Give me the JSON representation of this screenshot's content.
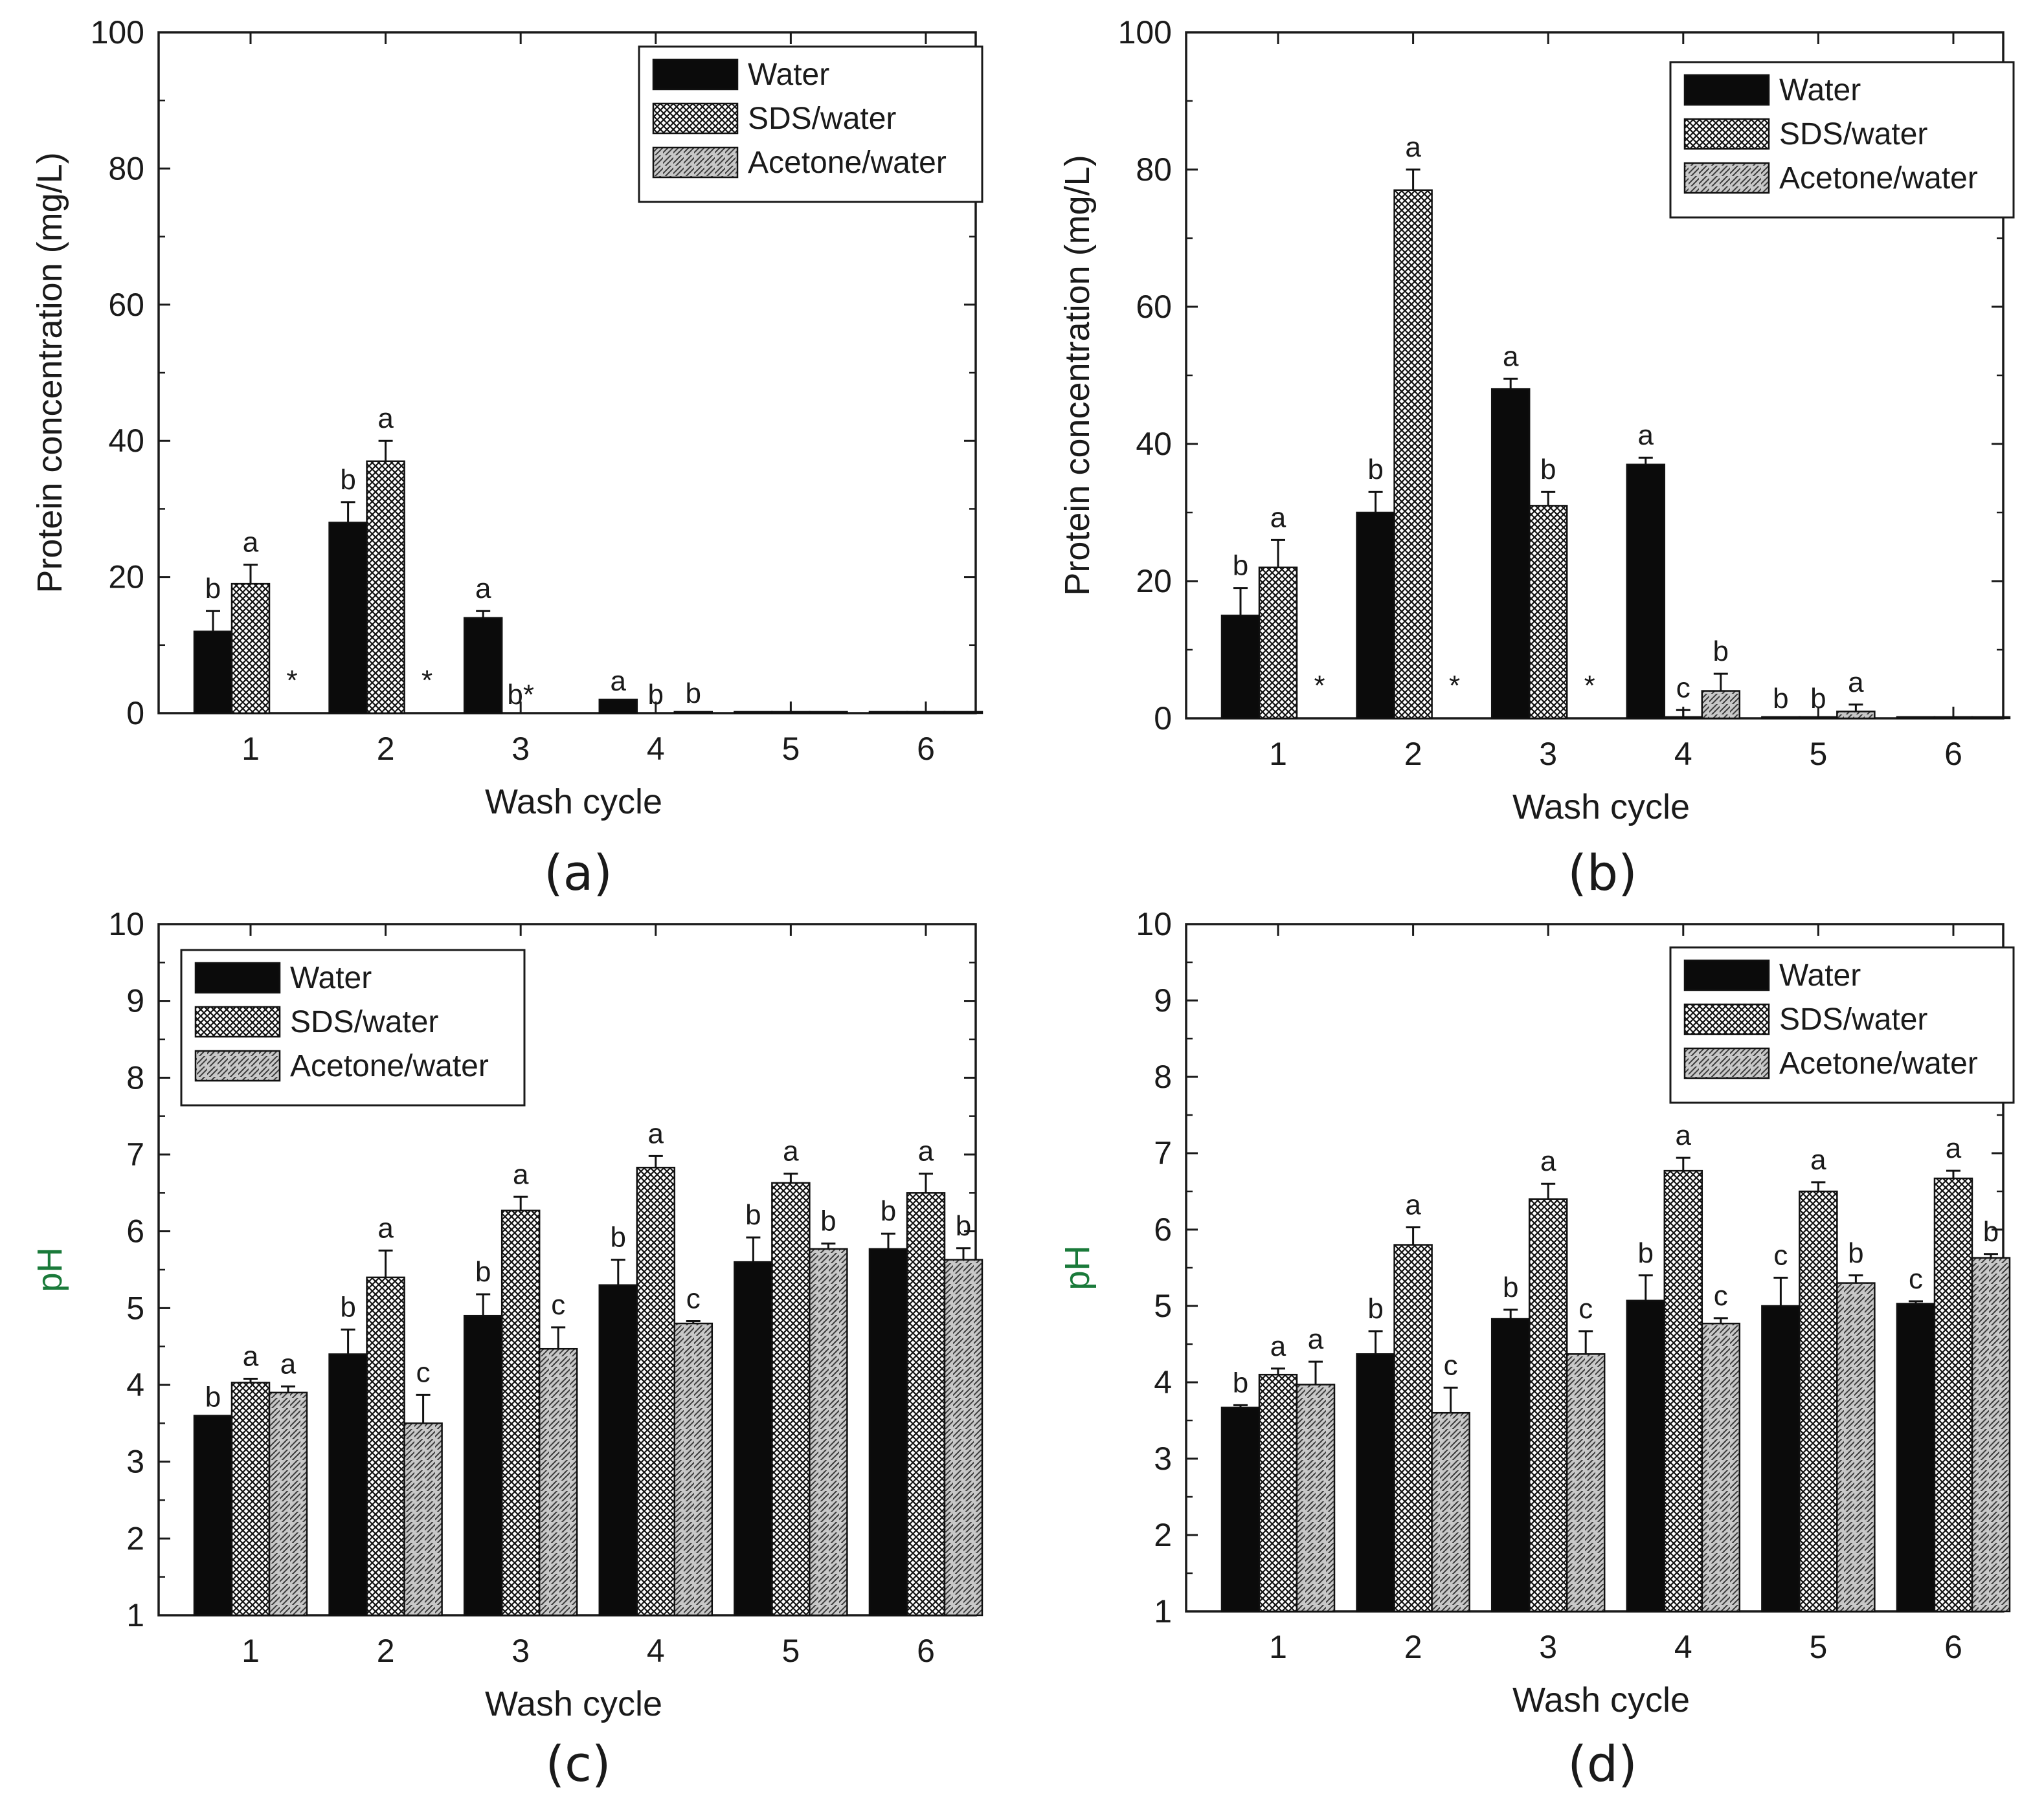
{
  "figure": {
    "captions": [
      "(a)",
      "(b)",
      "(c)",
      "(d)"
    ]
  },
  "colors": {
    "water": "#0b0b0b",
    "sds_bg": "#ffffff",
    "sds_dot": "#111111",
    "acetone_bg": "#c8c8c8",
    "acetone_hatch": "#3a3a3a",
    "axis": "#1a1a1a",
    "letter": "#1a1a1a",
    "letter_brown": "#8a5a1a",
    "ph_label": "#1a7a3a"
  },
  "chart_data": [
    {
      "id": "a",
      "type": "bar",
      "xlabel": "Wash cycle",
      "ylabel": "Protein concentration (mg/L)",
      "ylim": [
        0,
        100
      ],
      "yticks": [
        "0",
        "20",
        "40",
        "60",
        "80",
        "100"
      ],
      "categories": [
        "1",
        "2",
        "3",
        "4",
        "5",
        "6"
      ],
      "legend": {
        "position": "top-right",
        "entries": [
          "Water",
          "SDS/water",
          "Acetone/water"
        ]
      },
      "series": [
        {
          "name": "Water",
          "values": [
            12,
            28,
            14,
            2,
            0.2,
            0.2
          ],
          "errors": [
            3,
            3,
            1,
            0,
            0,
            0
          ],
          "labels": [
            "b",
            "b",
            "a",
            "a",
            "",
            ""
          ]
        },
        {
          "name": "SDS/water",
          "values": [
            19,
            37,
            0,
            0,
            0.2,
            0.2
          ],
          "errors": [
            2.8,
            3,
            0,
            0,
            0,
            0
          ],
          "labels": [
            "a",
            "a",
            "b*",
            "b",
            "",
            ""
          ]
        },
        {
          "name": "Acetone/water",
          "values": [
            0,
            0,
            0,
            0.2,
            0.2,
            0.2
          ],
          "errors": [
            0,
            0,
            0,
            0,
            0,
            0
          ],
          "labels": [
            "*",
            "*",
            "",
            "b",
            "",
            ""
          ]
        }
      ]
    },
    {
      "id": "b",
      "type": "bar",
      "xlabel": "Wash cycle",
      "ylabel": "Protein concentration (mg/L)",
      "ylim": [
        0,
        100
      ],
      "yticks": [
        "0",
        "20",
        "40",
        "60",
        "80",
        "100"
      ],
      "categories": [
        "1",
        "2",
        "3",
        "4",
        "5",
        "6"
      ],
      "legend": {
        "position": "top-right",
        "entries": [
          "Water",
          "SDS/water",
          "Acetone/water"
        ]
      },
      "series": [
        {
          "name": "Water",
          "values": [
            15,
            30,
            48,
            37,
            0.2,
            0.2
          ],
          "errors": [
            4,
            3,
            1.5,
            1,
            0,
            0
          ],
          "labels": [
            "b",
            "b",
            "a",
            "a",
            "b",
            ""
          ]
        },
        {
          "name": "SDS/water",
          "values": [
            22,
            77,
            31,
            0.2,
            0.2,
            0.2
          ],
          "errors": [
            4,
            3,
            2,
            1,
            0,
            0
          ],
          "labels": [
            "a",
            "a",
            "b",
            "c",
            "b",
            ""
          ]
        },
        {
          "name": "Acetone/water",
          "values": [
            0,
            0,
            0,
            4,
            1,
            0.2
          ],
          "errors": [
            0,
            0,
            0,
            2.5,
            1,
            0
          ],
          "labels": [
            "*",
            "*",
            "*",
            "b",
            "a",
            ""
          ]
        }
      ]
    },
    {
      "id": "c",
      "type": "bar",
      "xlabel": "Wash cycle",
      "ylabel": "pH",
      "ylim": [
        1,
        10
      ],
      "yticks": [
        "1",
        "2",
        "3",
        "4",
        "5",
        "6",
        "7",
        "8",
        "9",
        "10"
      ],
      "categories": [
        "1",
        "2",
        "3",
        "4",
        "5",
        "6"
      ],
      "legend": {
        "position": "top-left",
        "entries": [
          "Water",
          "SDS/water",
          "Acetone/water"
        ]
      },
      "series": [
        {
          "name": "Water",
          "values": [
            3.6,
            4.4,
            4.9,
            5.3,
            5.6,
            5.77
          ],
          "errors": [
            0,
            0.32,
            0.28,
            0.33,
            0.32,
            0.2
          ],
          "labels": [
            "b",
            "b",
            "b",
            "b",
            "b",
            "b"
          ]
        },
        {
          "name": "SDS/water",
          "values": [
            4.03,
            5.4,
            6.27,
            6.83,
            6.63,
            6.5
          ],
          "errors": [
            0.05,
            0.35,
            0.18,
            0.15,
            0.12,
            0.25
          ],
          "labels": [
            "a",
            "a",
            "a",
            "a",
            "a",
            "a"
          ]
        },
        {
          "name": "Acetone/water",
          "values": [
            3.9,
            3.5,
            4.47,
            4.8,
            5.77,
            5.63
          ],
          "errors": [
            0.08,
            0.37,
            0.28,
            0.03,
            0.07,
            0.15
          ],
          "labels": [
            "a",
            "c",
            "c",
            "c",
            "b",
            "b"
          ]
        }
      ]
    },
    {
      "id": "d",
      "type": "bar",
      "xlabel": "Wash cycle",
      "ylabel": "pH",
      "ylim": [
        1,
        10
      ],
      "yticks": [
        "1",
        "2",
        "3",
        "4",
        "5",
        "6",
        "7",
        "8",
        "9",
        "10"
      ],
      "categories": [
        "1",
        "2",
        "3",
        "4",
        "5",
        "6"
      ],
      "legend": {
        "position": "top-right",
        "entries": [
          "Water",
          "SDS/water",
          "Acetone/water"
        ]
      },
      "series": [
        {
          "name": "Water",
          "values": [
            3.67,
            4.37,
            4.83,
            5.07,
            5.0,
            5.03
          ],
          "errors": [
            0.03,
            0.3,
            0.12,
            0.33,
            0.37,
            0.03
          ],
          "labels": [
            "b",
            "b",
            "b",
            "b",
            "c",
            "c"
          ]
        },
        {
          "name": "SDS/water",
          "values": [
            4.1,
            5.8,
            6.4,
            6.77,
            6.5,
            6.67
          ],
          "errors": [
            0.08,
            0.23,
            0.2,
            0.17,
            0.12,
            0.1
          ],
          "labels": [
            "a",
            "a",
            "a",
            "a",
            "a",
            "a"
          ]
        },
        {
          "name": "Acetone/water",
          "values": [
            3.97,
            3.6,
            4.37,
            4.77,
            5.3,
            5.63
          ],
          "errors": [
            0.3,
            0.33,
            0.3,
            0.07,
            0.1,
            0.05
          ],
          "labels": [
            "a",
            "c",
            "c",
            "c",
            "b",
            "b"
          ]
        }
      ]
    }
  ]
}
